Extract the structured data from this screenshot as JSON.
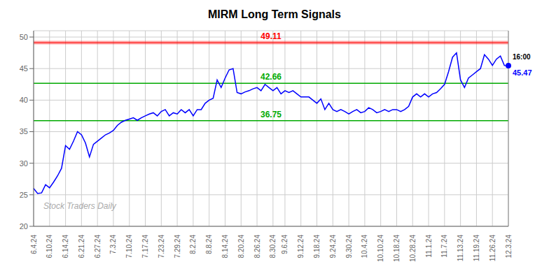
{
  "chart_data": {
    "type": "line",
    "title": "MIRM Long Term Signals",
    "categories": [
      "6.4.24",
      null,
      null,
      null,
      "6.10.24",
      null,
      null,
      null,
      "6.14.24",
      null,
      null,
      null,
      "6.21.24",
      null,
      null,
      null,
      "6.27.24",
      null,
      null,
      null,
      "7.3.24",
      null,
      null,
      null,
      "7.10.24",
      null,
      null,
      null,
      "7.17.24",
      null,
      null,
      null,
      "7.23.24",
      null,
      null,
      null,
      "7.29.24",
      null,
      null,
      null,
      "8.2.24",
      null,
      null,
      null,
      "8.8.24",
      null,
      null,
      null,
      "8.14.24",
      null,
      null,
      null,
      "8.20.24",
      null,
      null,
      null,
      "8.26.24",
      null,
      null,
      null,
      "8.30.24",
      null,
      null,
      "9.6.24",
      null,
      null,
      null,
      "9.12.24",
      null,
      null,
      null,
      "9.18.24",
      null,
      null,
      null,
      "9.24.24",
      null,
      null,
      null,
      "9.30.24",
      null,
      null,
      null,
      "10.4.24",
      null,
      null,
      null,
      "10.10.24",
      null,
      null,
      null,
      "10.18.24",
      null,
      null,
      null,
      "10.28.24",
      null,
      null,
      null,
      "11.1.24",
      null,
      null,
      null,
      "11.7.24",
      null,
      null,
      null,
      "11.13.24",
      null,
      null,
      null,
      "11.19.24",
      null,
      null,
      null,
      "11.26.24",
      null,
      null,
      null,
      "12.3.24"
    ],
    "values": [
      26.0,
      25.2,
      25.3,
      26.6,
      26.1,
      27.0,
      28.0,
      29.2,
      32.8,
      32.2,
      33.5,
      35.0,
      34.5,
      33.2,
      31.0,
      33.0,
      33.5,
      34.0,
      34.5,
      34.8,
      35.2,
      36.0,
      36.5,
      36.8,
      37.0,
      37.2,
      36.8,
      37.2,
      37.5,
      37.8,
      38.0,
      37.5,
      38.2,
      38.5,
      37.5,
      38.0,
      37.8,
      38.5,
      38.0,
      38.5,
      37.5,
      38.5,
      38.5,
      39.5,
      40.0,
      40.3,
      43.2,
      42.0,
      43.5,
      44.8,
      45.0,
      41.2,
      41.0,
      41.3,
      41.5,
      41.8,
      42.0,
      41.5,
      42.5,
      42.0,
      41.5,
      42.0,
      41.0,
      41.5,
      41.2,
      41.5,
      41.0,
      40.5,
      40.5,
      40.5,
      40.0,
      39.5,
      40.2,
      38.5,
      39.5,
      38.5,
      38.2,
      38.5,
      38.2,
      37.8,
      38.2,
      38.5,
      38.0,
      38.2,
      38.8,
      38.5,
      38.0,
      38.2,
      38.5,
      38.2,
      38.5,
      38.5,
      38.2,
      38.5,
      39.0,
      40.5,
      41.0,
      40.5,
      41.0,
      40.5,
      41.0,
      41.2,
      41.8,
      42.5,
      44.5,
      46.8,
      47.5,
      43.2,
      42.0,
      43.5,
      44.0,
      44.5,
      45.0,
      47.2,
      46.5,
      45.5,
      46.5,
      47.0,
      45.5,
      45.47
    ],
    "color": "blue",
    "ylim": [
      20,
      51
    ],
    "yticks": [
      20,
      25,
      30,
      35,
      40,
      45,
      50
    ],
    "grid": true,
    "reference_lines": [
      {
        "value": 49.11,
        "label": "49.11",
        "color": "red"
      },
      {
        "value": 42.66,
        "label": "42.66",
        "color": "#00aa00"
      },
      {
        "value": 36.75,
        "label": "36.75",
        "color": "#00aa00"
      }
    ],
    "last_point": {
      "value": 45.47,
      "label": "45.47",
      "time": "16:00"
    },
    "watermark": "Stock Traders Daily"
  }
}
